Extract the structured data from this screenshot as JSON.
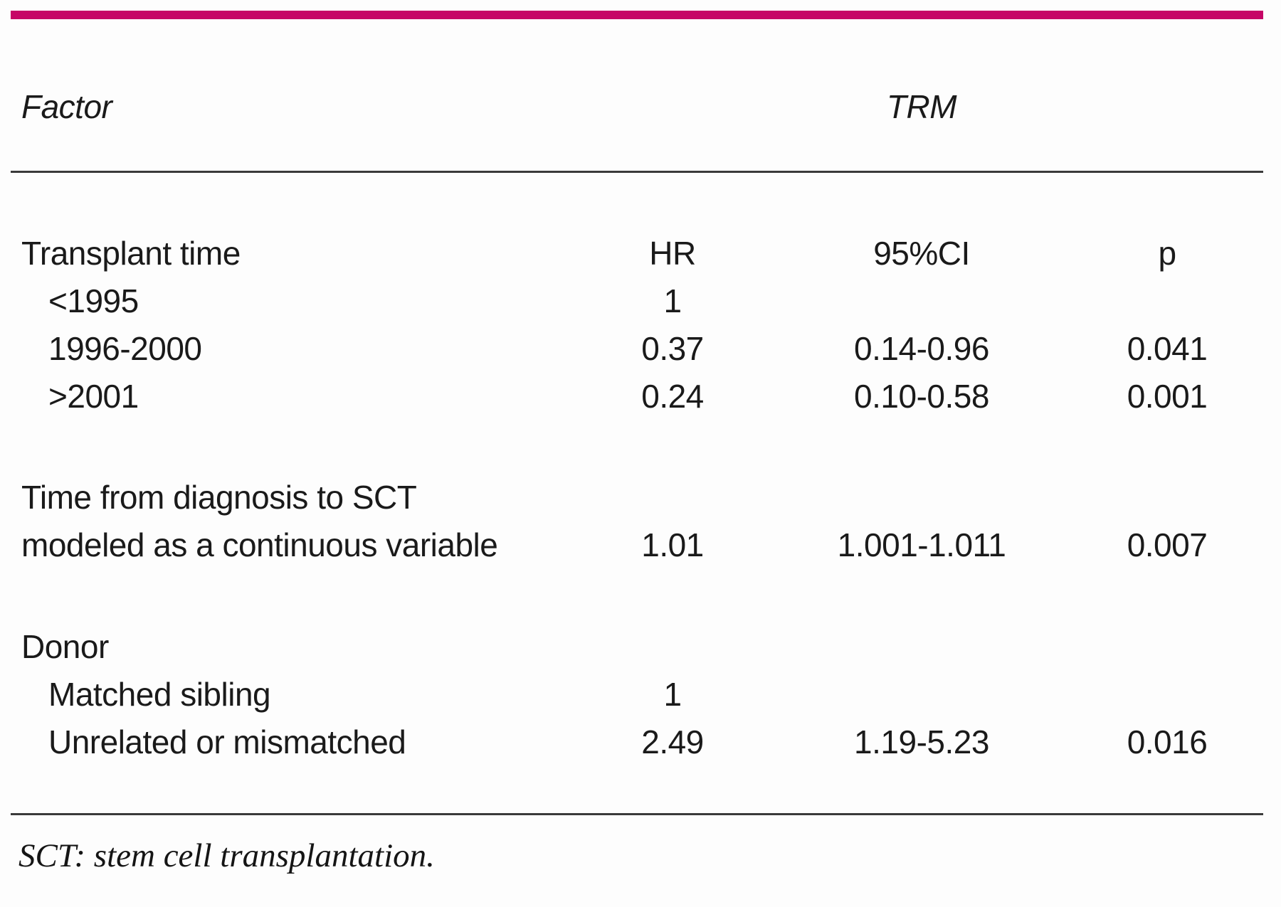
{
  "colors": {
    "accent": "#c60667",
    "rule": "#3a3a3a",
    "text": "#1a1a1a"
  },
  "header": {
    "factor": "Factor",
    "outcome_group": "TRM"
  },
  "columns": {
    "hr": "HR",
    "ci": "95%CI",
    "p": "p"
  },
  "table": {
    "sections": [
      {
        "title": "Transplant time",
        "rows": [
          {
            "label": "<1995",
            "hr": "1",
            "ci": "",
            "p": ""
          },
          {
            "label": "1996-2000",
            "hr": "0.37",
            "ci": "0.14-0.96",
            "p": "0.041"
          },
          {
            "label": ">2001",
            "hr": "0.24",
            "ci": "0.10-0.58",
            "p": "0.001"
          }
        ]
      },
      {
        "title_line1": "Time from diagnosis to SCT",
        "title_line2": "modeled as a continuous variable",
        "hr": "1.01",
        "ci": "1.001-1.011",
        "p": "0.007"
      },
      {
        "title": "Donor",
        "rows": [
          {
            "label": "Matched sibling",
            "hr": "1",
            "ci": "",
            "p": ""
          },
          {
            "label": "Unrelated or mismatched",
            "hr": "2.49",
            "ci": "1.19-5.23",
            "p": "0.016"
          }
        ]
      }
    ]
  },
  "footnote": "SCT: stem cell transplantation."
}
